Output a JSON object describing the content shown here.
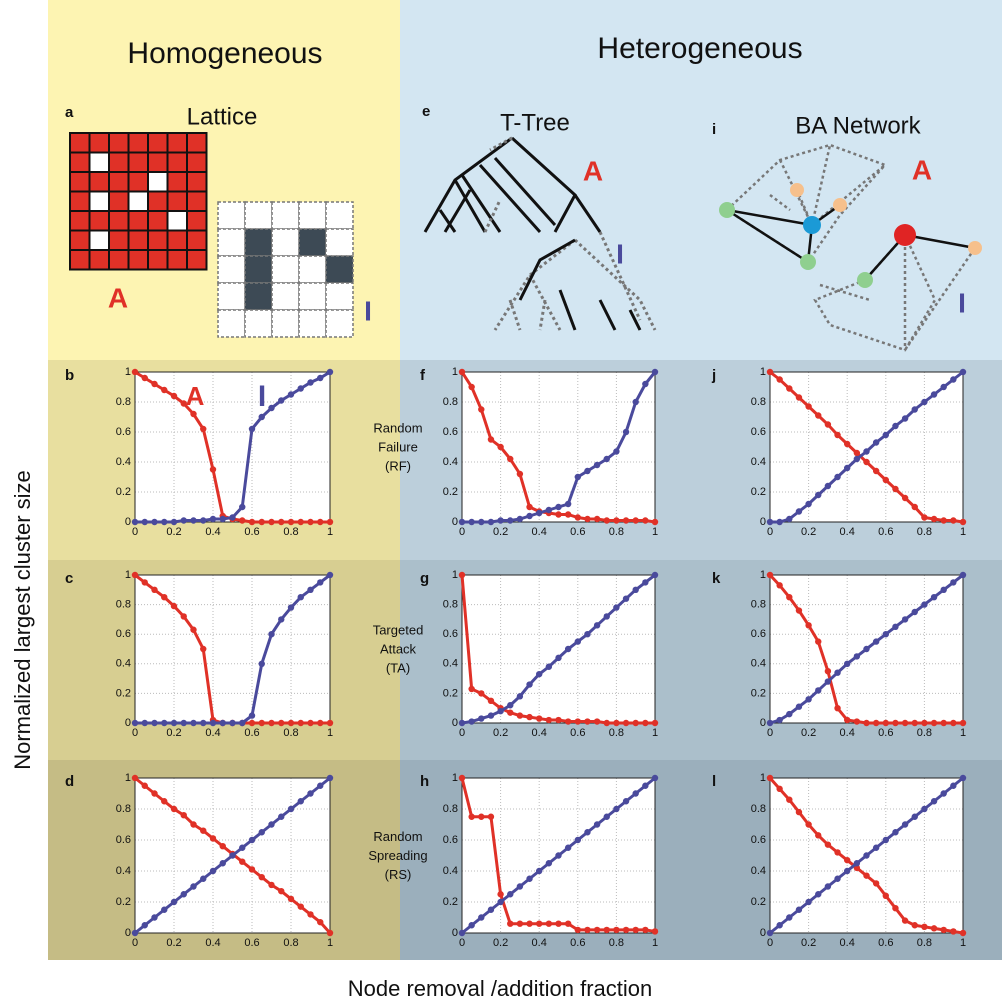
{
  "headers": [
    "Homogeneous",
    "Heterogeneous"
  ],
  "diagrams": [
    {
      "panel": "a",
      "title": "Lattice",
      "labels": [
        "A",
        "I"
      ]
    },
    {
      "panel": "e",
      "title": "T-Tree",
      "labels": [
        "A",
        "I"
      ]
    },
    {
      "panel": "i",
      "title": "BA Network",
      "labels": [
        "A",
        "I"
      ]
    }
  ],
  "y_label": "Normalized largest cluster size",
  "x_label": "Node removal /addition fraction",
  "chart_data": [
    {
      "type": "scatter",
      "panel": "b",
      "annotations": [
        {
          "text": "A",
          "color": "#e03127"
        },
        {
          "text": "I",
          "color": "#4a4a9c"
        }
      ],
      "x": [
        0,
        0.05,
        0.1,
        0.15,
        0.2,
        0.25,
        0.3,
        0.35,
        0.4,
        0.45,
        0.5,
        0.55,
        0.6,
        0.65,
        0.7,
        0.75,
        0.8,
        0.85,
        0.9,
        0.95,
        1
      ],
      "series": [
        {
          "color": "#e03127",
          "values": [
            1,
            0.96,
            0.92,
            0.88,
            0.84,
            0.79,
            0.72,
            0.62,
            0.35,
            0.04,
            0.02,
            0.01,
            0,
            0,
            0,
            0,
            0,
            0,
            0,
            0,
            0
          ]
        },
        {
          "color": "#4a4a9c",
          "values": [
            0,
            0,
            0,
            0,
            0,
            0.01,
            0.01,
            0.01,
            0.02,
            0.02,
            0.03,
            0.1,
            0.62,
            0.7,
            0.76,
            0.81,
            0.85,
            0.89,
            0.93,
            0.96,
            1
          ]
        }
      ],
      "xlim": [
        0,
        1
      ],
      "ylim": [
        0,
        1
      ],
      "xticks": [
        0,
        0.2,
        0.4,
        0.6,
        0.8,
        1
      ],
      "yticks": [
        0,
        0.2,
        0.4,
        0.6,
        0.8,
        1
      ],
      "grid": true
    },
    {
      "type": "scatter",
      "panel": "c",
      "x": [
        0,
        0.05,
        0.1,
        0.15,
        0.2,
        0.25,
        0.3,
        0.35,
        0.4,
        0.45,
        0.5,
        0.55,
        0.6,
        0.65,
        0.7,
        0.75,
        0.8,
        0.85,
        0.9,
        0.95,
        1
      ],
      "series": [
        {
          "color": "#e03127",
          "values": [
            1,
            0.95,
            0.9,
            0.85,
            0.79,
            0.72,
            0.63,
            0.5,
            0.02,
            0,
            0,
            0,
            0,
            0,
            0,
            0,
            0,
            0,
            0,
            0,
            0
          ]
        },
        {
          "color": "#4a4a9c",
          "values": [
            0,
            0,
            0,
            0,
            0,
            0,
            0,
            0,
            0,
            0,
            0,
            0,
            0.05,
            0.4,
            0.6,
            0.7,
            0.78,
            0.85,
            0.9,
            0.95,
            1
          ]
        }
      ],
      "xlim": [
        0,
        1
      ],
      "ylim": [
        0,
        1
      ],
      "xticks": [
        0,
        0.2,
        0.4,
        0.6,
        0.8,
        1
      ],
      "yticks": [
        0,
        0.2,
        0.4,
        0.6,
        0.8,
        1
      ],
      "grid": true
    },
    {
      "type": "scatter",
      "panel": "d",
      "x": [
        0,
        0.05,
        0.1,
        0.15,
        0.2,
        0.25,
        0.3,
        0.35,
        0.4,
        0.45,
        0.5,
        0.55,
        0.6,
        0.65,
        0.7,
        0.75,
        0.8,
        0.85,
        0.9,
        0.95,
        1
      ],
      "series": [
        {
          "color": "#e03127",
          "values": [
            1,
            0.95,
            0.9,
            0.85,
            0.8,
            0.76,
            0.7,
            0.66,
            0.61,
            0.56,
            0.51,
            0.46,
            0.41,
            0.36,
            0.31,
            0.27,
            0.22,
            0.17,
            0.12,
            0.07,
            0
          ]
        },
        {
          "color": "#4a4a9c",
          "values": [
            0,
            0.05,
            0.1,
            0.15,
            0.2,
            0.25,
            0.3,
            0.35,
            0.4,
            0.45,
            0.5,
            0.55,
            0.6,
            0.65,
            0.7,
            0.75,
            0.8,
            0.85,
            0.9,
            0.95,
            1
          ]
        }
      ],
      "xlim": [
        0,
        1
      ],
      "ylim": [
        0,
        1
      ],
      "xticks": [
        0,
        0.2,
        0.4,
        0.6,
        0.8,
        1
      ],
      "yticks": [
        0,
        0.2,
        0.4,
        0.6,
        0.8,
        1
      ],
      "grid": true
    },
    {
      "type": "scatter",
      "panel": "f",
      "row_label": [
        "Random",
        "Failure",
        "(RF)"
      ],
      "x": [
        0,
        0.05,
        0.1,
        0.15,
        0.2,
        0.25,
        0.3,
        0.35,
        0.4,
        0.45,
        0.5,
        0.55,
        0.6,
        0.65,
        0.7,
        0.75,
        0.8,
        0.85,
        0.9,
        0.95,
        1
      ],
      "series": [
        {
          "color": "#e03127",
          "values": [
            1,
            0.9,
            0.75,
            0.55,
            0.5,
            0.42,
            0.32,
            0.1,
            0.07,
            0.06,
            0.05,
            0.05,
            0.03,
            0.02,
            0.02,
            0.01,
            0.01,
            0.01,
            0.01,
            0.01,
            0
          ]
        },
        {
          "color": "#4a4a9c",
          "values": [
            0,
            0,
            0,
            0,
            0.01,
            0.01,
            0.02,
            0.04,
            0.06,
            0.08,
            0.1,
            0.12,
            0.3,
            0.34,
            0.38,
            0.42,
            0.47,
            0.6,
            0.8,
            0.92,
            1
          ]
        }
      ],
      "xlim": [
        0,
        1
      ],
      "ylim": [
        0,
        1
      ],
      "xticks": [
        0,
        0.2,
        0.4,
        0.6,
        0.8,
        1
      ],
      "yticks": [
        0,
        0.2,
        0.4,
        0.6,
        0.8,
        1
      ],
      "grid": true
    },
    {
      "type": "scatter",
      "panel": "g",
      "row_label": [
        "Targeted",
        "Attack",
        "(TA)"
      ],
      "x": [
        0,
        0.05,
        0.1,
        0.15,
        0.2,
        0.25,
        0.3,
        0.35,
        0.4,
        0.45,
        0.5,
        0.55,
        0.6,
        0.65,
        0.7,
        0.75,
        0.8,
        0.85,
        0.9,
        0.95,
        1
      ],
      "series": [
        {
          "color": "#e03127",
          "values": [
            1,
            0.23,
            0.2,
            0.15,
            0.1,
            0.07,
            0.05,
            0.04,
            0.03,
            0.02,
            0.02,
            0.01,
            0.01,
            0.01,
            0.01,
            0,
            0,
            0,
            0,
            0,
            0
          ]
        },
        {
          "color": "#4a4a9c",
          "values": [
            0,
            0.01,
            0.03,
            0.05,
            0.08,
            0.12,
            0.18,
            0.26,
            0.33,
            0.38,
            0.44,
            0.5,
            0.55,
            0.6,
            0.66,
            0.72,
            0.78,
            0.84,
            0.9,
            0.95,
            1
          ]
        }
      ],
      "xlim": [
        0,
        1
      ],
      "ylim": [
        0,
        1
      ],
      "xticks": [
        0,
        0.2,
        0.4,
        0.6,
        0.8,
        1
      ],
      "yticks": [
        0,
        0.2,
        0.4,
        0.6,
        0.8,
        1
      ],
      "grid": true
    },
    {
      "type": "scatter",
      "panel": "h",
      "row_label": [
        "Random",
        "Spreading",
        "(RS)"
      ],
      "x": [
        0,
        0.05,
        0.1,
        0.15,
        0.2,
        0.25,
        0.3,
        0.35,
        0.4,
        0.45,
        0.5,
        0.55,
        0.6,
        0.65,
        0.7,
        0.75,
        0.8,
        0.85,
        0.9,
        0.95,
        1
      ],
      "series": [
        {
          "color": "#e03127",
          "values": [
            1,
            0.75,
            0.75,
            0.75,
            0.25,
            0.06,
            0.06,
            0.06,
            0.06,
            0.06,
            0.06,
            0.06,
            0.02,
            0.02,
            0.02,
            0.02,
            0.02,
            0.02,
            0.02,
            0.02,
            0.01
          ]
        },
        {
          "color": "#4a4a9c",
          "values": [
            0,
            0.05,
            0.1,
            0.15,
            0.2,
            0.25,
            0.3,
            0.35,
            0.4,
            0.45,
            0.5,
            0.55,
            0.6,
            0.65,
            0.7,
            0.75,
            0.8,
            0.85,
            0.9,
            0.95,
            1
          ]
        }
      ],
      "xlim": [
        0,
        1
      ],
      "ylim": [
        0,
        1
      ],
      "xticks": [
        0,
        0.2,
        0.4,
        0.6,
        0.8,
        1
      ],
      "yticks": [
        0,
        0.2,
        0.4,
        0.6,
        0.8,
        1
      ],
      "grid": true
    },
    {
      "type": "scatter",
      "panel": "j",
      "x": [
        0,
        0.05,
        0.1,
        0.15,
        0.2,
        0.25,
        0.3,
        0.35,
        0.4,
        0.45,
        0.5,
        0.55,
        0.6,
        0.65,
        0.7,
        0.75,
        0.8,
        0.85,
        0.9,
        0.95,
        1
      ],
      "series": [
        {
          "color": "#e03127",
          "values": [
            1,
            0.95,
            0.89,
            0.83,
            0.77,
            0.71,
            0.65,
            0.58,
            0.52,
            0.46,
            0.4,
            0.34,
            0.28,
            0.22,
            0.16,
            0.1,
            0.03,
            0.02,
            0.01,
            0.01,
            0
          ]
        },
        {
          "color": "#4a4a9c",
          "values": [
            0,
            0,
            0.02,
            0.07,
            0.12,
            0.18,
            0.24,
            0.3,
            0.36,
            0.42,
            0.47,
            0.53,
            0.58,
            0.64,
            0.69,
            0.75,
            0.8,
            0.85,
            0.9,
            0.95,
            1
          ]
        }
      ],
      "xlim": [
        0,
        1
      ],
      "ylim": [
        0,
        1
      ],
      "xticks": [
        0,
        0.2,
        0.4,
        0.6,
        0.8,
        1
      ],
      "yticks": [
        0,
        0.2,
        0.4,
        0.6,
        0.8,
        1
      ],
      "grid": true
    },
    {
      "type": "scatter",
      "panel": "k",
      "x": [
        0,
        0.05,
        0.1,
        0.15,
        0.2,
        0.25,
        0.3,
        0.35,
        0.4,
        0.45,
        0.5,
        0.55,
        0.6,
        0.65,
        0.7,
        0.75,
        0.8,
        0.85,
        0.9,
        0.95,
        1
      ],
      "series": [
        {
          "color": "#e03127",
          "values": [
            1,
            0.93,
            0.85,
            0.76,
            0.66,
            0.55,
            0.35,
            0.1,
            0.02,
            0.01,
            0,
            0,
            0,
            0,
            0,
            0,
            0,
            0,
            0,
            0,
            0
          ]
        },
        {
          "color": "#4a4a9c",
          "values": [
            0,
            0.02,
            0.06,
            0.11,
            0.16,
            0.22,
            0.28,
            0.34,
            0.4,
            0.45,
            0.5,
            0.55,
            0.6,
            0.65,
            0.7,
            0.75,
            0.8,
            0.85,
            0.9,
            0.95,
            1
          ]
        }
      ],
      "xlim": [
        0,
        1
      ],
      "ylim": [
        0,
        1
      ],
      "xticks": [
        0,
        0.2,
        0.4,
        0.6,
        0.8,
        1
      ],
      "yticks": [
        0,
        0.2,
        0.4,
        0.6,
        0.8,
        1
      ],
      "grid": true
    },
    {
      "type": "scatter",
      "panel": "l",
      "x": [
        0,
        0.05,
        0.1,
        0.15,
        0.2,
        0.25,
        0.3,
        0.35,
        0.4,
        0.45,
        0.5,
        0.55,
        0.6,
        0.65,
        0.7,
        0.75,
        0.8,
        0.85,
        0.9,
        0.95,
        1
      ],
      "series": [
        {
          "color": "#e03127",
          "values": [
            1,
            0.93,
            0.86,
            0.78,
            0.7,
            0.63,
            0.57,
            0.52,
            0.47,
            0.42,
            0.37,
            0.32,
            0.24,
            0.16,
            0.08,
            0.05,
            0.04,
            0.03,
            0.02,
            0.01,
            0
          ]
        },
        {
          "color": "#4a4a9c",
          "values": [
            0,
            0.05,
            0.1,
            0.15,
            0.2,
            0.25,
            0.3,
            0.35,
            0.4,
            0.45,
            0.5,
            0.55,
            0.6,
            0.65,
            0.7,
            0.75,
            0.8,
            0.85,
            0.9,
            0.95,
            1
          ]
        }
      ],
      "xlim": [
        0,
        1
      ],
      "ylim": [
        0,
        1
      ],
      "xticks": [
        0,
        0.2,
        0.4,
        0.6,
        0.8,
        1
      ],
      "yticks": [
        0,
        0.2,
        0.4,
        0.6,
        0.8,
        1
      ],
      "grid": true
    }
  ]
}
